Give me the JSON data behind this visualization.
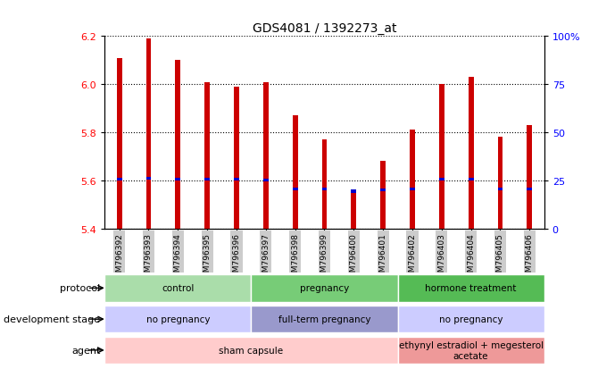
{
  "title": "GDS4081 / 1392273_at",
  "samples": [
    "GSM796392",
    "GSM796393",
    "GSM796394",
    "GSM796395",
    "GSM796396",
    "GSM796397",
    "GSM796398",
    "GSM796399",
    "GSM796400",
    "GSM796401",
    "GSM796402",
    "GSM796403",
    "GSM796404",
    "GSM796405",
    "GSM796406"
  ],
  "bar_values": [
    6.11,
    6.19,
    6.1,
    6.01,
    5.99,
    6.01,
    5.87,
    5.77,
    5.55,
    5.68,
    5.81,
    6.0,
    6.03,
    5.78,
    5.83
  ],
  "percentile_values": [
    5.605,
    5.61,
    5.605,
    5.605,
    5.605,
    5.6,
    5.565,
    5.565,
    5.555,
    5.56,
    5.565,
    5.605,
    5.605,
    5.565,
    5.565
  ],
  "ylim_left": [
    5.4,
    6.2
  ],
  "yticks_left": [
    5.4,
    5.6,
    5.8,
    6.0,
    6.2
  ],
  "yticks_right": [
    0,
    25,
    50,
    75,
    100
  ],
  "ytick_labels_right": [
    "0",
    "25",
    "50",
    "75",
    "100%"
  ],
  "bar_color": "#cc0000",
  "percentile_color": "#0000cc",
  "protocol_groups": [
    {
      "label": "control",
      "start": 0,
      "end": 4,
      "color": "#aaddaa"
    },
    {
      "label": "pregnancy",
      "start": 5,
      "end": 9,
      "color": "#77cc77"
    },
    {
      "label": "hormone treatment",
      "start": 10,
      "end": 14,
      "color": "#55bb55"
    }
  ],
  "development_groups": [
    {
      "label": "no pregnancy",
      "start": 0,
      "end": 4,
      "color": "#ccccff"
    },
    {
      "label": "full-term pregnancy",
      "start": 5,
      "end": 9,
      "color": "#9999cc"
    },
    {
      "label": "no pregnancy",
      "start": 10,
      "end": 14,
      "color": "#ccccff"
    }
  ],
  "agent_groups": [
    {
      "label": "sham capsule",
      "start": 0,
      "end": 9,
      "color": "#ffcccc"
    },
    {
      "label": "ethynyl estradiol + megesterol\nacetate",
      "start": 10,
      "end": 14,
      "color": "#ee9999"
    }
  ],
  "row_labels": [
    "protocol",
    "development stage",
    "agent"
  ],
  "tick_bg_color": "#cccccc"
}
